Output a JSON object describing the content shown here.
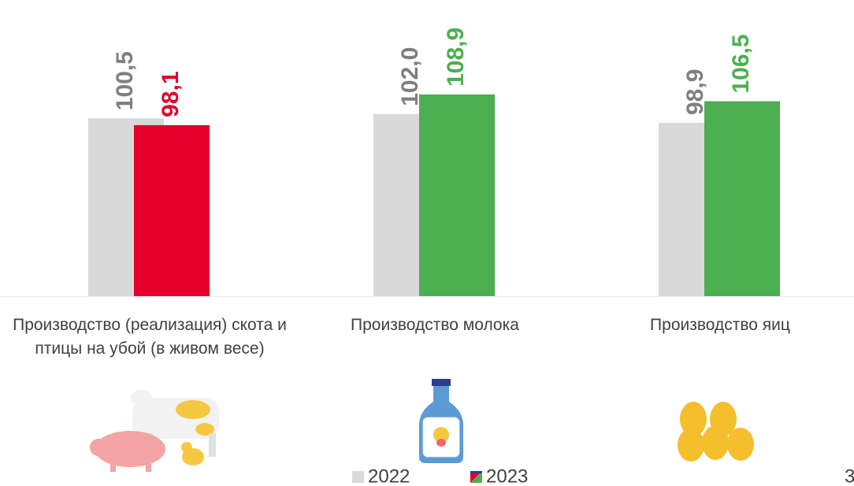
{
  "chart_data": {
    "type": "bar",
    "categories": [
      "Производство (реализация) скота и птицы на убой (в живом весе)",
      "Производство молока",
      "Производство яиц"
    ],
    "series": [
      {
        "name": "2022",
        "color": "#d9d9d9",
        "label_color": "#7f7f7f",
        "values": [
          100.5,
          102.0,
          98.9
        ],
        "value_labels": [
          "100,5",
          "102,0",
          "98,9"
        ]
      },
      {
        "name": "2023",
        "colors": [
          "#e4002b",
          "#4caf50",
          "#4caf50"
        ],
        "values": [
          98.1,
          108.9,
          106.5
        ],
        "value_labels": [
          "98,1",
          "108,9",
          "106,5"
        ]
      }
    ],
    "ylim": [
      38,
      118
    ]
  },
  "page_number": "3"
}
